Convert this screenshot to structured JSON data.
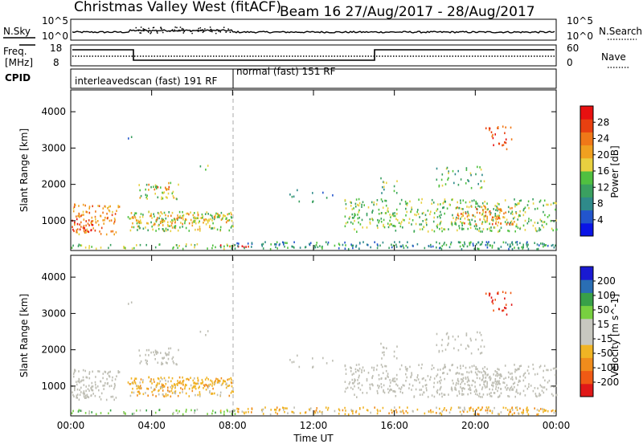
{
  "header": {
    "title": "Christmas Valley West (fitACF)",
    "beam": "Beam 16 27/Aug/2017 - 28/Aug/2017"
  },
  "top_panels": {
    "noise_left_label": "N.Sky",
    "noise_right_label": "N.Search",
    "noise_left_ticks": [
      "10^5",
      "10^0"
    ],
    "noise_right_ticks": [
      "10^5",
      "10^0"
    ],
    "freq_label_1": "Freq.",
    "freq_label_2": "[MHz]",
    "freq_ticks": [
      "18",
      "8"
    ],
    "nave_label": "Nave",
    "nave_ticks": [
      "60",
      "0"
    ],
    "cpid_label": "CPID",
    "cpid_segments": [
      "interleavedscan (fast) 191 RF",
      "normal (fast) 151 RF"
    ]
  },
  "colors": {
    "power_scale": [
      "#0a14e6",
      "#2255cc",
      "#2f8a8a",
      "#3aa060",
      "#50c040",
      "#e8d040",
      "#f0a020",
      "#f07818",
      "#e84010",
      "#e81010"
    ],
    "velocity_scale": [
      "#e01818",
      "#f05a14",
      "#f08c1c",
      "#f0b424",
      "#c8c8c0",
      "#c8c8c0",
      "#78d040",
      "#38a048",
      "#2a6eb4",
      "#1a1ad2"
    ],
    "ground_scatter": "#bebeb4"
  },
  "chart_data": [
    {
      "type": "heatmap",
      "title": "Power",
      "xlabel": "",
      "ylabel": "Slant Range [km]",
      "xlim": [
        "00:00",
        "00:00"
      ],
      "ylim": [
        180,
        4600
      ],
      "x_ticks": [
        "00:00",
        "04:00",
        "08:00",
        "12:00",
        "16:00",
        "20:00",
        "00:00"
      ],
      "y_ticks": [
        "1000",
        "2000",
        "3000",
        "4000"
      ],
      "colorbar_label": "Power [dB]",
      "colorbar_ticks": [
        "4",
        "8",
        "12",
        "16",
        "20",
        "24",
        "28"
      ],
      "colorbar_range": [
        0,
        32
      ]
    },
    {
      "type": "heatmap",
      "title": "Velocity",
      "xlabel": "Time UT",
      "ylabel": "Slant Range [km]",
      "xlim": [
        "00:00",
        "00:00"
      ],
      "ylim": [
        180,
        4600
      ],
      "x_ticks": [
        "00:00",
        "04:00",
        "08:00",
        "12:00",
        "16:00",
        "20:00",
        "00:00"
      ],
      "y_ticks": [
        "1000",
        "2000",
        "3000",
        "4000"
      ],
      "colorbar_label": "Velocity [m s^-1]",
      "colorbar_ticks": [
        "200",
        "100",
        "50",
        "15",
        "-15",
        "-50",
        "-100",
        "-200"
      ]
    }
  ]
}
